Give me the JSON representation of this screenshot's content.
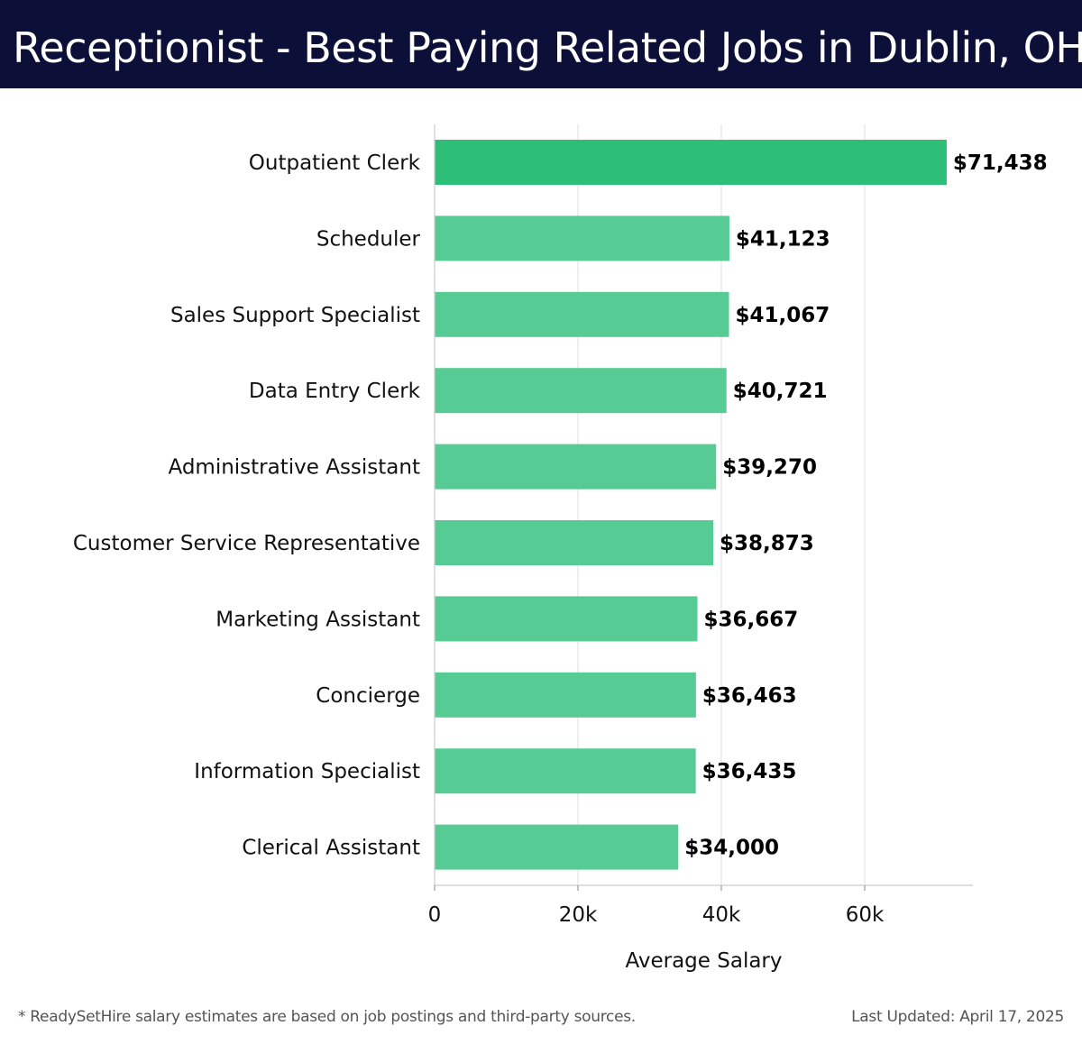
{
  "header": {
    "title": "Receptionist - Best Paying Related Jobs in Dublin, OH"
  },
  "chart_data": {
    "type": "bar",
    "orientation": "horizontal",
    "categories": [
      "Outpatient Clerk",
      "Scheduler",
      "Sales Support Specialist",
      "Data Entry Clerk",
      "Administrative Assistant",
      "Customer Service Representative",
      "Marketing Assistant",
      "Concierge",
      "Information Specialist",
      "Clerical Assistant"
    ],
    "values": [
      71438,
      41123,
      41067,
      40721,
      39270,
      38873,
      36667,
      36463,
      36435,
      34000
    ],
    "value_labels": [
      "$71,438",
      "$41,123",
      "$41,067",
      "$40,721",
      "$39,270",
      "$38,873",
      "$36,667",
      "$36,463",
      "$36,435",
      "$34,000"
    ],
    "xlabel": "Average Salary",
    "ylabel": "",
    "xlim": [
      0,
      75000
    ],
    "xticks": [
      0,
      20000,
      40000,
      60000
    ],
    "xtick_labels": [
      "0",
      "20k",
      "40k",
      "60k"
    ],
    "grid": "vertical",
    "colors": {
      "highlight": "#2dbe78",
      "bar": "#56cc94",
      "grid": "#e4e4e4"
    }
  },
  "footer": {
    "note": "* ReadySetHire salary estimates are based on job postings and third-party sources.",
    "updated": "Last Updated: April 17, 2025"
  }
}
